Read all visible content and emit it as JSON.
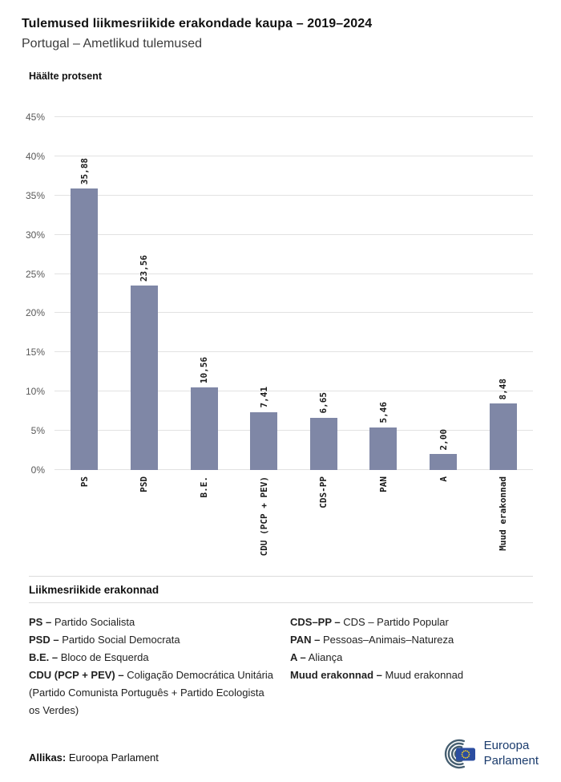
{
  "header": {
    "title": "Tulemused liikmesriikide erakondade kaupa – 2019–2024",
    "subtitle": "Portugal – Ametlikud tulemused"
  },
  "chart_data": {
    "type": "bar",
    "axis_title": "Häälte protsent",
    "categories": [
      "PS",
      "PSD",
      "B.E.",
      "CDU (PCP + PEV)",
      "CDS-PP",
      "PAN",
      "A",
      "Muud erakonnad"
    ],
    "values": [
      35.88,
      23.56,
      10.56,
      7.41,
      6.65,
      5.46,
      2.0,
      8.48
    ],
    "value_labels": [
      "35,88",
      "23,56",
      "10,56",
      "7,41",
      "6,65",
      "5,46",
      "2,00",
      "8,48"
    ],
    "ylim": [
      0,
      45
    ],
    "ytick_step": 5,
    "ytick_labels": [
      "0%",
      "5%",
      "10%",
      "15%",
      "20%",
      "25%",
      "30%",
      "35%",
      "40%",
      "45%"
    ],
    "bar_color": "#7f87a6",
    "grid": true,
    "legend_position": "none"
  },
  "legend": {
    "heading": "Liikmesriikide erakonnad",
    "left_items": [
      {
        "abbr": "PS –",
        "rest": "Partido Socialista"
      },
      {
        "abbr": "PSD –",
        "rest": "Partido Social Democrata"
      },
      {
        "abbr": "B.E. –",
        "rest": "Bloco de Esquerda"
      },
      {
        "abbr": "CDU (PCP + PEV) –",
        "rest": "Coligação Democrática Unitária (Partido Comunista Português + Partido Ecologista os Verdes)"
      }
    ],
    "right_items": [
      {
        "abbr": "CDS–PP –",
        "rest": "CDS – Partido Popular"
      },
      {
        "abbr": "PAN –",
        "rest": "Pessoas–Animais–Natureza"
      },
      {
        "abbr": "A –",
        "rest": "Aliança"
      },
      {
        "abbr": "Muud erakonnad –",
        "rest": "Muud erakonnad"
      }
    ]
  },
  "footer": {
    "source_label": "Allikas:",
    "source_value": "Euroopa Parlament",
    "logo_line1": "Euroopa",
    "logo_line2": "Parlament"
  },
  "colors": {
    "bar": "#7f87a6",
    "gridline": "#e2e2e2",
    "logo_navy": "#1b3c6d",
    "flag_blue": "#2b4da0",
    "star_yellow": "#ffd617"
  }
}
